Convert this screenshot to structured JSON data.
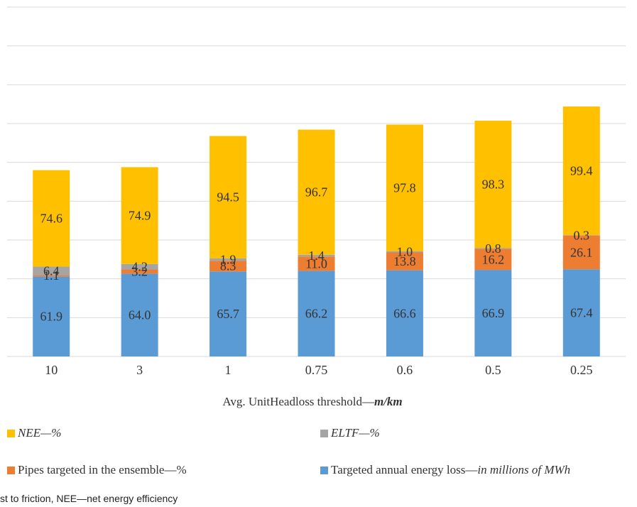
{
  "chart_data": {
    "type": "bar",
    "stacked": true,
    "categories": [
      "10",
      "3",
      "1",
      "0.75",
      "0.6",
      "0.5",
      "0.25"
    ],
    "series": [
      {
        "key": "energy",
        "name": "Targeted annual energy loss",
        "unit": "in millions of MWh",
        "color": "#5b9bd5",
        "values": [
          61.9,
          64.0,
          65.7,
          66.2,
          66.6,
          66.9,
          67.4
        ]
      },
      {
        "key": "pipes",
        "name": "Pipes targeted in the ensemble",
        "unit": "%",
        "color": "#ed7d31",
        "values": [
          1.1,
          3.2,
          8.3,
          11.0,
          13.8,
          16.2,
          26.1
        ]
      },
      {
        "key": "eltf",
        "name": "ELTF",
        "unit": "%",
        "color": "#a5a5a5",
        "values": [
          6.4,
          4.2,
          1.9,
          1.4,
          1.0,
          0.8,
          0.3
        ]
      },
      {
        "key": "nee",
        "name": "NEE",
        "unit": "%",
        "color": "#ffc000",
        "values": [
          74.6,
          74.9,
          94.5,
          96.7,
          97.8,
          98.3,
          99.4
        ]
      }
    ],
    "xlabel": {
      "text": "Avg. UnitHeadloss threshold—",
      "unit": "m/km"
    },
    "ylim": [
      0,
      270
    ],
    "grid": true,
    "legend_position": "bottom"
  },
  "legend": [
    {
      "key": "nee",
      "name": "NEE",
      "sep": "—",
      "unit": "%",
      "name_italic": true,
      "unit_italic": true
    },
    {
      "key": "eltf",
      "name": "ELTF",
      "sep": "—",
      "unit": "%",
      "name_italic": true,
      "unit_italic": true
    },
    {
      "key": "pipes",
      "name": "Pipes targeted in the ensemble",
      "sep": "—",
      "unit": "%",
      "name_italic": false,
      "unit_italic": false
    },
    {
      "key": "energy",
      "name": "Targeted annual energy loss",
      "sep": "—",
      "unit": "in millions of MWh",
      "name_italic": false,
      "unit_italic": true
    }
  ],
  "colors": {
    "energy": "#5b9bd5",
    "pipes": "#ed7d31",
    "eltf": "#a5a5a5",
    "nee": "#ffc000",
    "grid": "#d9d9d9",
    "text": "#333333"
  },
  "footnote": "st to friction, NEE—net energy efficiency"
}
